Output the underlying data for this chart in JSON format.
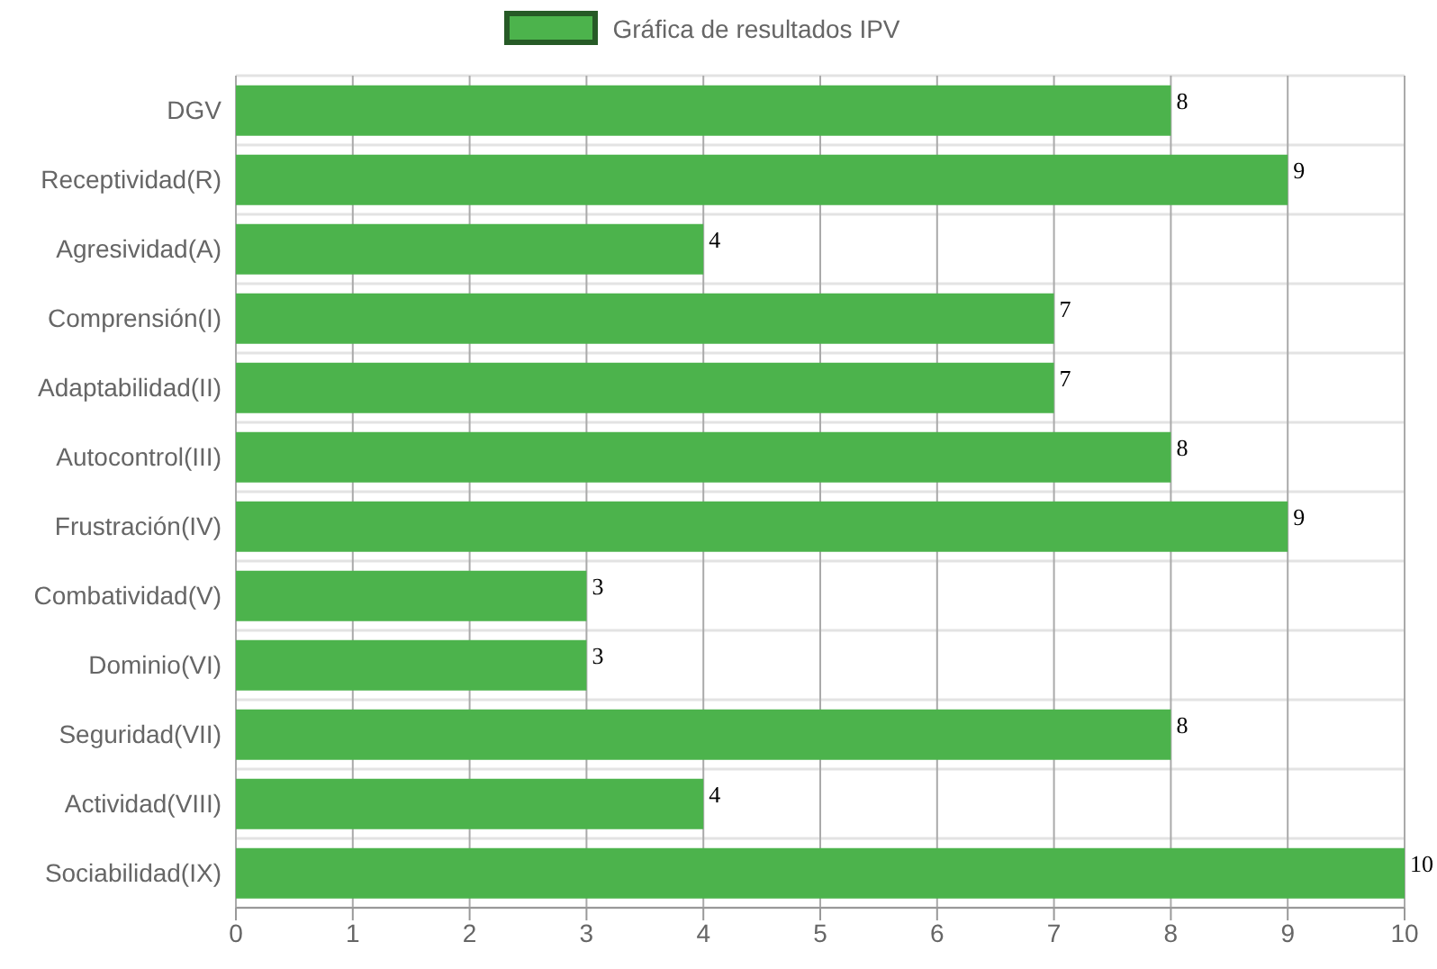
{
  "chart_data": {
    "type": "bar",
    "orientation": "horizontal",
    "categories": [
      "DGV",
      "Receptividad(R)",
      "Agresividad(A)",
      "Comprensión(I)",
      "Adaptabilidad(II)",
      "Autocontrol(III)",
      "Frustración(IV)",
      "Combatividad(V)",
      "Dominio(VI)",
      "Seguridad(VII)",
      "Actividad(VIII)",
      "Sociabilidad(IX)"
    ],
    "series": [
      {
        "name": "Gráfica de resultados IPV",
        "color": "#4cb34c",
        "values": [
          8,
          9,
          4,
          7,
          7,
          8,
          9,
          3,
          3,
          8,
          4,
          10
        ]
      }
    ],
    "xlim": [
      0,
      10
    ],
    "xticks": [
      0,
      1,
      2,
      3,
      4,
      5,
      6,
      7,
      8,
      9,
      10
    ],
    "grid": true,
    "legend": "top",
    "data_labels": true
  }
}
